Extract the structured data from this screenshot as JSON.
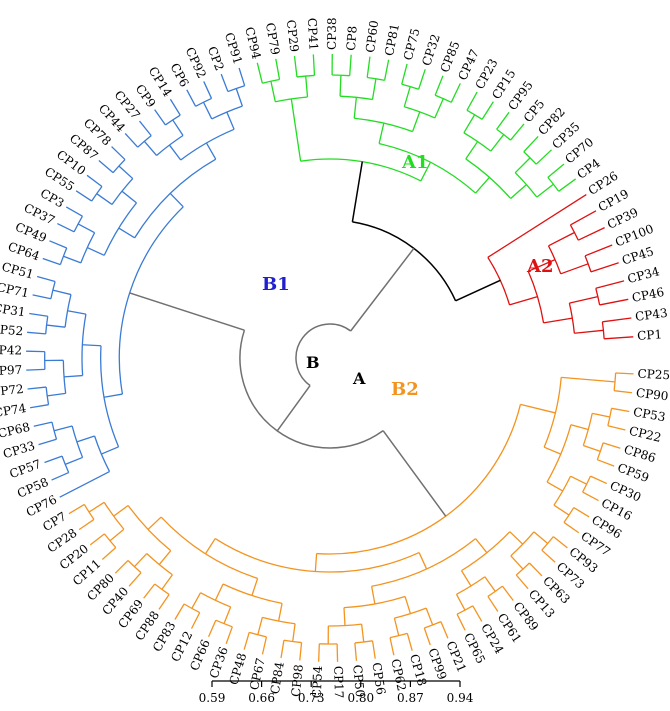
{
  "title": "",
  "colors": {
    "A1": "#22dd22",
    "A2": "#e01010",
    "B1": "#3a7bd5",
    "B2": "#f39420",
    "trunkA": "#000000",
    "trunkB": "#707070"
  },
  "node_labels": {
    "A": "A",
    "B": "B"
  },
  "clade_labels": {
    "A1": "A1",
    "A2": "A2",
    "B1": "B1",
    "B2": "B2"
  },
  "scale": {
    "ticks": [
      "0.59",
      "0.66",
      "0.73",
      "0.80",
      "0.87",
      "0.94"
    ]
  },
  "leaves": [
    {
      "label": "CP1",
      "group": "A2"
    },
    {
      "label": "CP43",
      "group": "A2"
    },
    {
      "label": "CP46",
      "group": "A2"
    },
    {
      "label": "CP34",
      "group": "A2"
    },
    {
      "label": "CP45",
      "group": "A2"
    },
    {
      "label": "CP100",
      "group": "A2"
    },
    {
      "label": "CP39",
      "group": "A2"
    },
    {
      "label": "CP19",
      "group": "A2"
    },
    {
      "label": "CP26",
      "group": "A2"
    },
    {
      "label": "CP4",
      "group": "A1"
    },
    {
      "label": "CP70",
      "group": "A1"
    },
    {
      "label": "CP35",
      "group": "A1"
    },
    {
      "label": "CP82",
      "group": "A1"
    },
    {
      "label": "CP5",
      "group": "A1"
    },
    {
      "label": "CP95",
      "group": "A1"
    },
    {
      "label": "CP15",
      "group": "A1"
    },
    {
      "label": "CP23",
      "group": "A1"
    },
    {
      "label": "CP47",
      "group": "A1"
    },
    {
      "label": "CP85",
      "group": "A1"
    },
    {
      "label": "CP32",
      "group": "A1"
    },
    {
      "label": "CP75",
      "group": "A1"
    },
    {
      "label": "CP81",
      "group": "A1"
    },
    {
      "label": "CP60",
      "group": "A1"
    },
    {
      "label": "CP8",
      "group": "A1"
    },
    {
      "label": "CP38",
      "group": "A1"
    },
    {
      "label": "CP41",
      "group": "A1"
    },
    {
      "label": "CP29",
      "group": "A1"
    },
    {
      "label": "CP79",
      "group": "A1"
    },
    {
      "label": "CP94",
      "group": "A1"
    },
    {
      "label": "CP91",
      "group": "B1"
    },
    {
      "label": "CP2",
      "group": "B1"
    },
    {
      "label": "CP92",
      "group": "B1"
    },
    {
      "label": "CP6",
      "group": "B1"
    },
    {
      "label": "CP14",
      "group": "B1"
    },
    {
      "label": "CP9",
      "group": "B1"
    },
    {
      "label": "CP27",
      "group": "B1"
    },
    {
      "label": "CP44",
      "group": "B1"
    },
    {
      "label": "CP78",
      "group": "B1"
    },
    {
      "label": "CP87",
      "group": "B1"
    },
    {
      "label": "CP10",
      "group": "B1"
    },
    {
      "label": "CP55",
      "group": "B1"
    },
    {
      "label": "CP3",
      "group": "B1"
    },
    {
      "label": "CP37",
      "group": "B1"
    },
    {
      "label": "CP49",
      "group": "B1"
    },
    {
      "label": "CP64",
      "group": "B1"
    },
    {
      "label": "CP51",
      "group": "B1"
    },
    {
      "label": "CP71",
      "group": "B1"
    },
    {
      "label": "CP31",
      "group": "B1"
    },
    {
      "label": "CP52",
      "group": "B1"
    },
    {
      "label": "CP42",
      "group": "B1"
    },
    {
      "label": "CP97",
      "group": "B1"
    },
    {
      "label": "CP72",
      "group": "B1"
    },
    {
      "label": "CP74",
      "group": "B1"
    },
    {
      "label": "CP68",
      "group": "B1"
    },
    {
      "label": "CP33",
      "group": "B1"
    },
    {
      "label": "CP57",
      "group": "B1"
    },
    {
      "label": "CP58",
      "group": "B1"
    },
    {
      "label": "CP76",
      "group": "B1"
    },
    {
      "label": "CP7",
      "group": "B2"
    },
    {
      "label": "CP28",
      "group": "B2"
    },
    {
      "label": "CP20",
      "group": "B2"
    },
    {
      "label": "CP11",
      "group": "B2"
    },
    {
      "label": "CP80",
      "group": "B2"
    },
    {
      "label": "CP40",
      "group": "B2"
    },
    {
      "label": "CP69",
      "group": "B2"
    },
    {
      "label": "CP88",
      "group": "B2"
    },
    {
      "label": "CP83",
      "group": "B2"
    },
    {
      "label": "CP12",
      "group": "B2"
    },
    {
      "label": "CP66",
      "group": "B2"
    },
    {
      "label": "CP36",
      "group": "B2"
    },
    {
      "label": "CP48",
      "group": "B2"
    },
    {
      "label": "CP67",
      "group": "B2"
    },
    {
      "label": "CP84",
      "group": "B2"
    },
    {
      "label": "CP98",
      "group": "B2"
    },
    {
      "label": "CP54",
      "group": "B2"
    },
    {
      "label": "CP17",
      "group": "B2"
    },
    {
      "label": "CP50",
      "group": "B2"
    },
    {
      "label": "CP56",
      "group": "B2"
    },
    {
      "label": "CP62",
      "group": "B2"
    },
    {
      "label": "CP18",
      "group": "B2"
    },
    {
      "label": "CP99",
      "group": "B2"
    },
    {
      "label": "CP21",
      "group": "B2"
    },
    {
      "label": "CP65",
      "group": "B2"
    },
    {
      "label": "CP24",
      "group": "B2"
    },
    {
      "label": "CP61",
      "group": "B2"
    },
    {
      "label": "CP89",
      "group": "B2"
    },
    {
      "label": "CP13",
      "group": "B2"
    },
    {
      "label": "CP63",
      "group": "B2"
    },
    {
      "label": "CP73",
      "group": "B2"
    },
    {
      "label": "CP93",
      "group": "B2"
    },
    {
      "label": "CP77",
      "group": "B2"
    },
    {
      "label": "CP96",
      "group": "B2"
    },
    {
      "label": "CP16",
      "group": "B2"
    },
    {
      "label": "CP30",
      "group": "B2"
    },
    {
      "label": "CP59",
      "group": "B2"
    },
    {
      "label": "CP86",
      "group": "B2"
    },
    {
      "label": "CP22",
      "group": "B2"
    },
    {
      "label": "CP53",
      "group": "B2"
    },
    {
      "label": "CP90",
      "group": "B2"
    },
    {
      "label": "CP25",
      "group": "B2"
    }
  ]
}
